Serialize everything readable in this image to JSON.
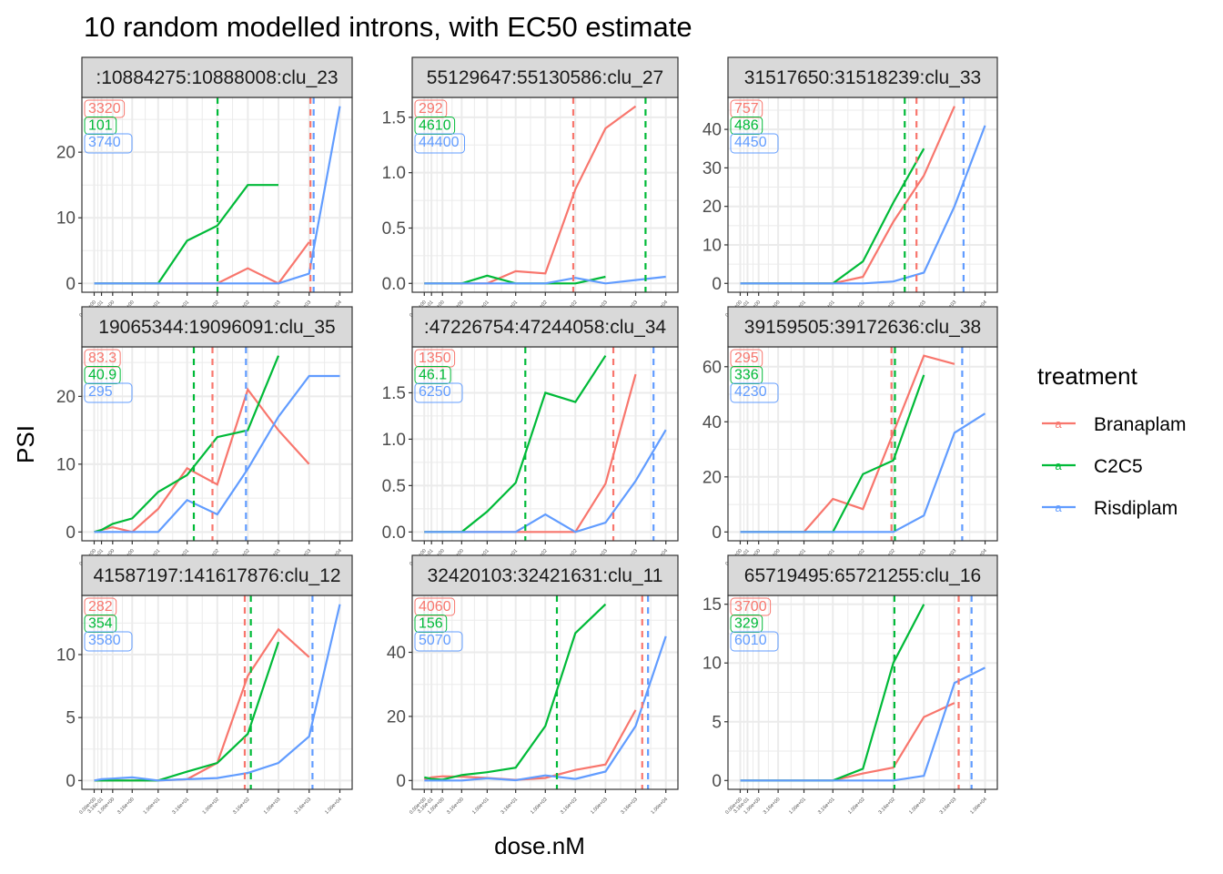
{
  "chart_data": {
    "type": "line",
    "title": "10 random modelled introns, with EC50 estimate",
    "xlabel": "dose.nM",
    "ylabel": "PSI",
    "x_scale": "log10(x+1)",
    "grid": true,
    "legend_position": "right",
    "legend": {
      "title": "treatment",
      "entries": [
        {
          "name": "Branaplam",
          "color": "#F8766D"
        },
        {
          "name": "C2C5",
          "color": "#00BA38"
        },
        {
          "name": "Risdiplam",
          "color": "#619CFF"
        }
      ]
    },
    "x": [
      0,
      0.316,
      1,
      3.16,
      10,
      31.6,
      100,
      316,
      1000,
      3160,
      10000
    ],
    "x_tick_labels": [
      "0.00e+00",
      "3.16e-01",
      "1.00e+00",
      "3.16e+00",
      "1.00e+01",
      "3.16e+01",
      "1.00e+02",
      "3.16e+02",
      "1.00e+03",
      "3.16e+03",
      "1.00e+04"
    ],
    "facets": [
      {
        "strip": ":10884275:10888008:clu_23",
        "yticks": [
          0,
          10,
          20
        ],
        "ec50": [
          "3320",
          "101",
          "3740"
        ],
        "series": [
          [
            0,
            0,
            0,
            0,
            0,
            0,
            0,
            2.3,
            0,
            6.3,
            null
          ],
          [
            0,
            0,
            0,
            0,
            0,
            6.5,
            8.8,
            15,
            15,
            null,
            null
          ],
          [
            0,
            0,
            0,
            0,
            0,
            0,
            0,
            0,
            0,
            1.5,
            27
          ]
        ]
      },
      {
        "strip": "55129647:55130586:clu_27",
        "yticks": [
          0,
          0.5,
          1.0,
          1.5
        ],
        "ec50": [
          "292",
          "4610",
          "44400"
        ],
        "series": [
          [
            0,
            0,
            0,
            0,
            0,
            0.11,
            0.09,
            0.85,
            1.4,
            1.6,
            null
          ],
          [
            0,
            0,
            0,
            0,
            0.07,
            0,
            0,
            0,
            0.06,
            null,
            null
          ],
          [
            0,
            0,
            0,
            0,
            0,
            0,
            0,
            0.05,
            0,
            0.03,
            0.06
          ]
        ]
      },
      {
        "strip": "31517650:31518239:clu_33",
        "yticks": [
          0,
          10,
          20,
          30,
          40
        ],
        "ec50": [
          "757",
          "486",
          "4450"
        ],
        "series": [
          [
            0,
            0,
            0,
            0,
            0,
            0,
            1.7,
            16,
            28,
            46,
            null
          ],
          [
            0,
            0,
            0,
            0,
            0,
            0,
            5.7,
            21,
            35,
            null,
            null
          ],
          [
            0,
            0,
            0,
            0,
            0,
            0,
            0,
            0.5,
            2.8,
            20,
            41
          ]
        ]
      },
      {
        "strip": "19065344:19096091:clu_35",
        "yticks": [
          0,
          10,
          20
        ],
        "ec50": [
          "83.3",
          "40.9",
          "295"
        ],
        "series": [
          [
            0,
            0.3,
            0.7,
            0,
            3.4,
            9.4,
            7,
            21,
            15,
            10,
            null
          ],
          [
            0,
            0.3,
            1.2,
            2,
            5.9,
            8.4,
            14,
            15,
            26,
            null,
            null
          ],
          [
            0,
            0,
            0,
            0,
            0,
            4.7,
            2.6,
            9.3,
            17,
            23,
            23
          ]
        ]
      },
      {
        "strip": ":47226754:47244058:clu_34",
        "yticks": [
          0,
          0.5,
          1.0,
          1.5
        ],
        "ec50": [
          "1350",
          "46.1",
          "6250"
        ],
        "series": [
          [
            0,
            0,
            0,
            0,
            0,
            0,
            0,
            0,
            0.52,
            1.7,
            null
          ],
          [
            0,
            0,
            0,
            0,
            0.22,
            0.53,
            1.5,
            1.4,
            1.9,
            null,
            null
          ],
          [
            0,
            0,
            0,
            0,
            0,
            0,
            0.19,
            0,
            0.1,
            0.55,
            1.1
          ]
        ]
      },
      {
        "strip": "39159505:39172636:clu_38",
        "yticks": [
          0,
          20,
          40,
          60
        ],
        "ec50": [
          "295",
          "336",
          "4230"
        ],
        "series": [
          [
            0,
            0,
            0,
            0,
            0,
            12,
            8.3,
            36,
            64,
            61,
            null
          ],
          [
            0,
            0,
            0,
            0,
            0,
            0,
            21,
            26,
            57,
            null,
            null
          ],
          [
            0,
            0,
            0,
            0,
            0,
            0,
            0,
            0,
            6,
            36,
            43
          ]
        ]
      },
      {
        "strip": "41587197:141617876:clu_12",
        "yticks": [
          0,
          5,
          10
        ],
        "ec50": [
          "282",
          "354",
          "3580"
        ],
        "series": [
          [
            0,
            0,
            0,
            0,
            0,
            0.1,
            1.4,
            8.3,
            12,
            9.8,
            null
          ],
          [
            0,
            0,
            0,
            0,
            0,
            0.7,
            1.4,
            3.7,
            11,
            null,
            null
          ],
          [
            0,
            0.1,
            0.15,
            0.25,
            0,
            0.1,
            0.2,
            0.6,
            1.4,
            3.5,
            14
          ]
        ]
      },
      {
        "strip": "32420103:32421631:clu_11",
        "yticks": [
          0,
          20,
          40
        ],
        "ec50": [
          "4060",
          "156",
          "5070"
        ],
        "series": [
          [
            0.3,
            1.0,
            1.3,
            1.2,
            0.8,
            0.2,
            0.8,
            3.3,
            5,
            22,
            null
          ],
          [
            1,
            0.5,
            0.3,
            1.7,
            2.6,
            4,
            17,
            46,
            55,
            null,
            null
          ],
          [
            0,
            0,
            0,
            0,
            0.7,
            0.1,
            1.6,
            0.5,
            2.8,
            17,
            45
          ]
        ]
      },
      {
        "strip": "65719495:65721255:clu_16",
        "yticks": [
          0,
          5,
          10,
          15
        ],
        "ec50": [
          "3700",
          "329",
          "6010"
        ],
        "series": [
          [
            0,
            0,
            0,
            0,
            0,
            0,
            0.6,
            1.1,
            5.4,
            6.6,
            null
          ],
          [
            0,
            0,
            0,
            0,
            0,
            0,
            1,
            10,
            15,
            null,
            null
          ],
          [
            0,
            0,
            0,
            0,
            0,
            0,
            0,
            0,
            0.4,
            8.3,
            9.6
          ]
        ]
      }
    ]
  }
}
